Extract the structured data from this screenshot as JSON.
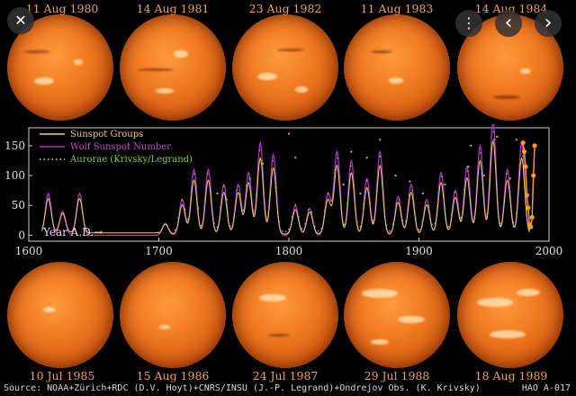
{
  "top_dates": [
    "11 Aug 1980",
    "14 Aug 1981",
    "23 Aug 1982",
    "11 Aug 1983",
    "14 Aug 1984"
  ],
  "bottom_dates": [
    "10 Jul 1985",
    "15 Aug 1986",
    "24 Jul 1987",
    "29 Jul 1988",
    "18 Aug 1989"
  ],
  "controls": {
    "close": "✕",
    "more": "⋮",
    "prev": "‹",
    "next": "›"
  },
  "chart_data": {
    "type": "line",
    "legend": [
      "Sunspot Groups",
      "Wolf Sunspot Number",
      "Aurorae (Krivsky/Legrand)"
    ],
    "year_label": "Year A.D.→",
    "x_ticks": [
      "1600",
      "1700",
      "1800",
      "1900",
      "2000"
    ],
    "y_ticks": [
      "150",
      "100",
      "50",
      "0"
    ],
    "xlim": [
      1600,
      2000
    ],
    "ylim": [
      -10,
      180
    ],
    "colors": {
      "groups": "#e8d070",
      "wolf": "#b030c0",
      "aurorae": "#70d030",
      "recent": "#ff9a20",
      "axis": "#d0d0d0"
    },
    "cycles": [
      {
        "year": 1615,
        "peak": 70
      },
      {
        "year": 1626,
        "peak": 40
      },
      {
        "year": 1639,
        "peak": 70
      },
      {
        "year": 1705,
        "peak": 20
      },
      {
        "year": 1718,
        "peak": 60
      },
      {
        "year": 1727,
        "peak": 110
      },
      {
        "year": 1738,
        "peak": 110
      },
      {
        "year": 1750,
        "peak": 85
      },
      {
        "year": 1761,
        "peak": 85
      },
      {
        "year": 1769,
        "peak": 105
      },
      {
        "year": 1778,
        "peak": 155
      },
      {
        "year": 1788,
        "peak": 135
      },
      {
        "year": 1805,
        "peak": 50
      },
      {
        "year": 1816,
        "peak": 45
      },
      {
        "year": 1830,
        "peak": 70
      },
      {
        "year": 1837,
        "peak": 140
      },
      {
        "year": 1848,
        "peak": 125
      },
      {
        "year": 1860,
        "peak": 95
      },
      {
        "year": 1870,
        "peak": 140
      },
      {
        "year": 1884,
        "peak": 65
      },
      {
        "year": 1894,
        "peak": 85
      },
      {
        "year": 1906,
        "peak": 60
      },
      {
        "year": 1917,
        "peak": 105
      },
      {
        "year": 1928,
        "peak": 75
      },
      {
        "year": 1937,
        "peak": 115
      },
      {
        "year": 1947,
        "peak": 150
      },
      {
        "year": 1957,
        "peak": 190
      },
      {
        "year": 1968,
        "peak": 110
      },
      {
        "year": 1979,
        "peak": 155
      }
    ],
    "recent_points": [
      {
        "x": 1980,
        "y": 155
      },
      {
        "x": 1981,
        "y": 140
      },
      {
        "x": 1982,
        "y": 115
      },
      {
        "x": 1983,
        "y": 67
      },
      {
        "x": 1984,
        "y": 46
      },
      {
        "x": 1985,
        "y": 18
      },
      {
        "x": 1986,
        "y": 14
      },
      {
        "x": 1987,
        "y": 30
      },
      {
        "x": 1988,
        "y": 100
      },
      {
        "x": 1989,
        "y": 150
      }
    ],
    "aurora_points": [
      {
        "x": 1730,
        "y": 45
      },
      {
        "x": 1745,
        "y": 70
      },
      {
        "x": 1752,
        "y": 60
      },
      {
        "x": 1770,
        "y": 95
      },
      {
        "x": 1780,
        "y": 120
      },
      {
        "x": 1790,
        "y": 80
      },
      {
        "x": 1800,
        "y": 170
      },
      {
        "x": 1805,
        "y": 130
      },
      {
        "x": 1836,
        "y": 110
      },
      {
        "x": 1842,
        "y": 85
      },
      {
        "x": 1848,
        "y": 140
      },
      {
        "x": 1855,
        "y": 70
      },
      {
        "x": 1860,
        "y": 130
      },
      {
        "x": 1870,
        "y": 160
      },
      {
        "x": 1882,
        "y": 100
      },
      {
        "x": 1893,
        "y": 90
      },
      {
        "x": 1903,
        "y": 70
      },
      {
        "x": 1920,
        "y": 85
      },
      {
        "x": 1938,
        "y": 115
      },
      {
        "x": 1940,
        "y": 150
      },
      {
        "x": 1950,
        "y": 100
      },
      {
        "x": 1958,
        "y": 160
      },
      {
        "x": 1960,
        "y": 165
      },
      {
        "x": 1970,
        "y": 95
      },
      {
        "x": 1975,
        "y": 160
      }
    ]
  },
  "footer": {
    "source": "Source: NOAA+Zürich+RDC (D.V. Hoyt)+CNRS/INSU (J.-P. Legrand)+Ondrejov Obs. (K. Krivsky)",
    "code": "HAO A-017"
  }
}
